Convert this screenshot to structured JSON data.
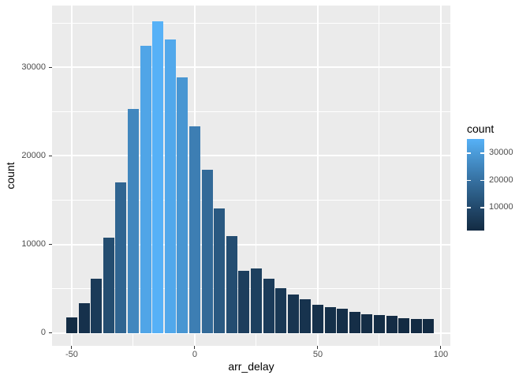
{
  "chart_data": {
    "type": "bar",
    "variant": "histogram",
    "title": "",
    "xlabel": "arr_delay",
    "ylabel": "count",
    "bin_width": 5,
    "bin_centers": [
      -50,
      -45,
      -40,
      -35,
      -30,
      -25,
      -20,
      -15,
      -10,
      -5,
      0,
      5,
      10,
      15,
      20,
      25,
      30,
      35,
      40,
      45,
      50,
      55,
      60,
      65,
      70,
      75,
      80,
      85,
      90,
      95
    ],
    "counts": [
      1800,
      3400,
      6100,
      10800,
      17000,
      25300,
      32400,
      35200,
      33100,
      28900,
      23300,
      18400,
      14100,
      10900,
      7000,
      7300,
      6100,
      5100,
      4300,
      3800,
      3200,
      2900,
      2700,
      2400,
      2100,
      2000,
      1900,
      1650,
      1600,
      1550
    ],
    "x_axis": {
      "ticks": [
        -50,
        0,
        50,
        100
      ],
      "tick_labels": [
        "-50",
        "0",
        "50",
        "100"
      ],
      "minor_ticks": [
        -25,
        25,
        75
      ],
      "range": [
        -58,
        103.85
      ]
    },
    "y_axis": {
      "ticks": [
        0,
        10000,
        20000,
        30000
      ],
      "tick_labels": [
        "0",
        "10000",
        "20000",
        "30000"
      ],
      "minor_ticks": [
        5000,
        15000,
        25000,
        35000
      ],
      "range": [
        -1450,
        36970
      ]
    },
    "grid": "major-and-minor",
    "legend": {
      "title": "count",
      "position": "right",
      "ticks": [
        10000,
        20000,
        30000
      ],
      "tick_labels": [
        "10000",
        "20000",
        "30000"
      ]
    },
    "fill_gradient": {
      "low": "#132B43",
      "high": "#56B1F7"
    }
  },
  "colors": {
    "figure_background": "#FFFFFF",
    "panel_background": "#EBEBEB",
    "gridline": "#FFFFFF",
    "tick_label": "#4D4D4D",
    "axis_title": "#000000",
    "tick_mark": "#333333"
  }
}
